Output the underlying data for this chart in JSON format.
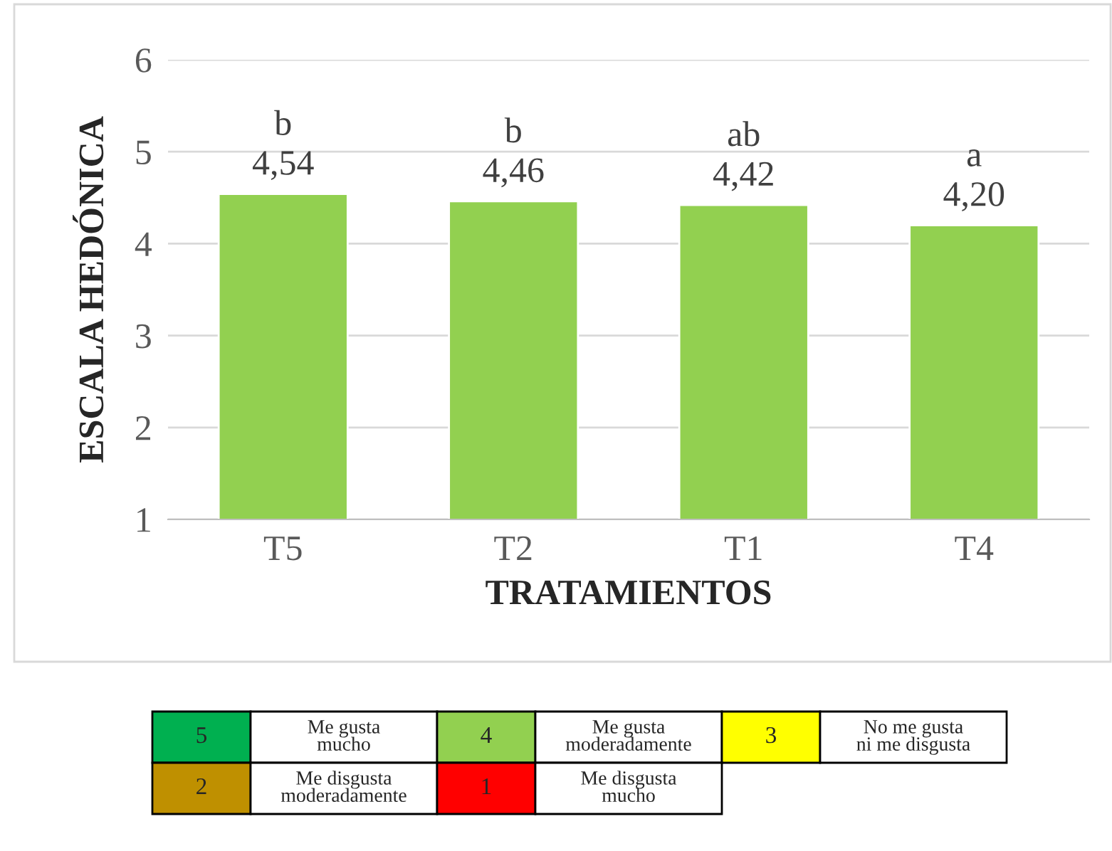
{
  "chart_data": {
    "type": "bar",
    "xlabel": "TRATAMIENTOS",
    "ylabel": "ESCALA HEDÓNICA",
    "categories": [
      "T5",
      "T2",
      "T1",
      "T4"
    ],
    "values": [
      4.54,
      4.46,
      4.42,
      4.2
    ],
    "value_labels": [
      "b\n4,54",
      "b\n4,46",
      "ab\n4,42",
      "a\n4,20"
    ],
    "color": "#92d050",
    "ylim": [
      1,
      6
    ],
    "yticks": [
      1,
      2,
      3,
      4,
      5,
      6
    ],
    "grid": "y",
    "annotations": [
      "5",
      "Me gusta\nmucho",
      "4",
      "Me gusta\nmoderadamente",
      "3",
      "No me gusta\nni me disgusta",
      "2",
      "Me disgusta\nmoderadamente",
      "1",
      "Me disgusta\nmucho"
    ]
  }
}
